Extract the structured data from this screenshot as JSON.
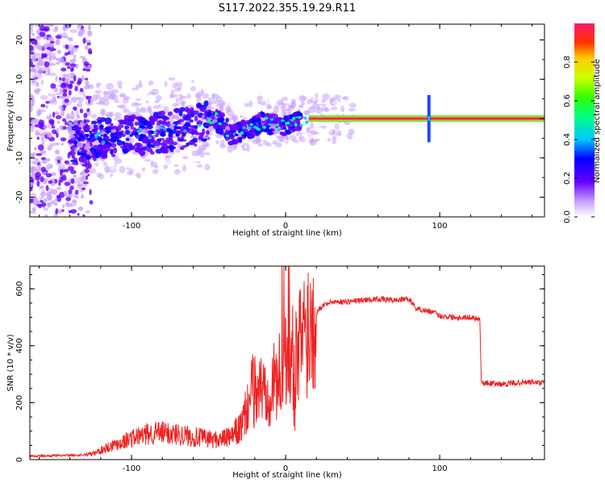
{
  "title": "S117.2022.355.19.29.R11",
  "colors": {
    "snr_line": "#ee2222",
    "tone_band": "#ff1a66",
    "background": "#ffffff"
  },
  "chart_data": [
    {
      "type": "heatmap",
      "name": "spectrogram",
      "xlabel": "Height of straight line (km)",
      "ylabel": "Frequency (Hz)",
      "xlim": [
        -166,
        168
      ],
      "ylim": [
        -25,
        24
      ],
      "x_ticks": [
        -100,
        0,
        100
      ],
      "y_ticks": [
        20,
        10,
        0,
        -10,
        -20
      ],
      "carrier_frequency_hz": 0,
      "signal_trace": {
        "x": [
          -135,
          -120,
          -100,
          -80,
          -60,
          -45,
          -35,
          -25,
          -15,
          -5,
          5,
          15,
          168
        ],
        "y": [
          -6,
          -5,
          -4.5,
          -3.5,
          -2,
          0,
          -4,
          -3,
          -1,
          -2,
          -1,
          0,
          0
        ]
      },
      "colorbar": {
        "label": "Normalized spectral amplitude",
        "range": [
          0,
          1
        ],
        "ticks": [
          "0.0",
          "0.2",
          "0.4",
          "0.6",
          "0.8"
        ]
      }
    },
    {
      "type": "line",
      "name": "snr",
      "xlabel": "Height of straight line (km)",
      "ylabel": "SNR (10 * v/v)",
      "xlim": [
        -166,
        168
      ],
      "ylim": [
        0,
        680
      ],
      "x_ticks": [
        -100,
        0,
        100
      ],
      "y_ticks": [
        0,
        200,
        400,
        600
      ],
      "series": [
        {
          "x": [
            -166,
            -150,
            -135,
            -125,
            -115,
            -100,
            -85,
            -70,
            -60,
            -45,
            -35,
            -28,
            -22,
            -15,
            -10,
            -5,
            0,
            3,
            6,
            10,
            15,
            20,
            25,
            30,
            40,
            50,
            60,
            70,
            80,
            85,
            95,
            100,
            110,
            120,
            126,
            127,
            140,
            150,
            160,
            168
          ],
          "y": [
            12,
            14,
            15,
            20,
            45,
            75,
            95,
            90,
            80,
            70,
            80,
            120,
            240,
            250,
            255,
            280,
            330,
            390,
            320,
            430,
            480,
            520,
            545,
            555,
            555,
            560,
            565,
            560,
            565,
            530,
            520,
            505,
            500,
            500,
            495,
            270,
            265,
            270,
            272,
            268
          ]
        }
      ]
    }
  ]
}
